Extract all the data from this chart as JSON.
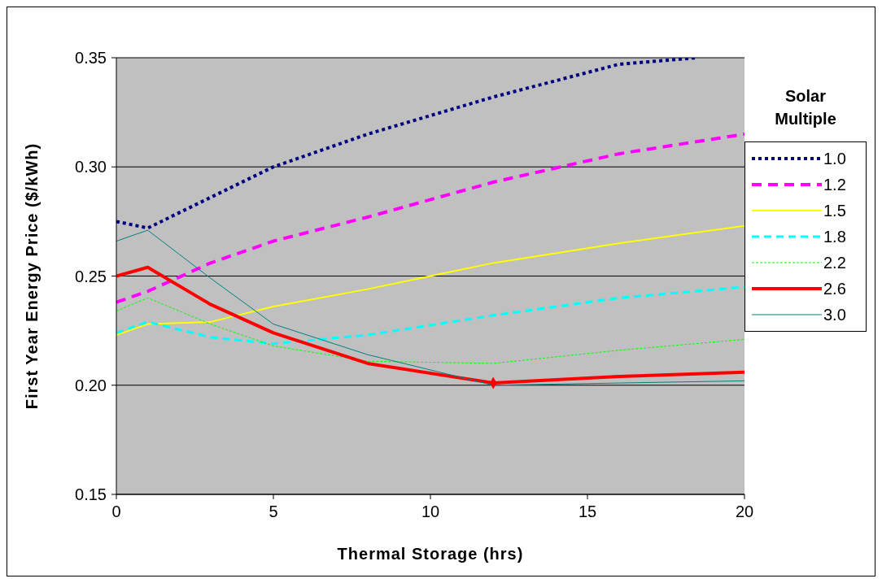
{
  "chart_data": {
    "type": "line",
    "xlabel": "Thermal Storage (hrs)",
    "ylabel": "First Year Energy Price ($/kWh)",
    "legend_title": "Solar Multiple",
    "x": [
      0,
      1,
      3,
      5,
      8,
      12,
      16,
      20
    ],
    "xlim": [
      0,
      20
    ],
    "xticks": [
      0,
      5,
      10,
      15,
      20
    ],
    "ylim": [
      0.15,
      0.35
    ],
    "yticks": [
      0.15,
      {
        "value": 0.2,
        "label": "0.20"
      },
      0.25,
      {
        "value": 0.3,
        "label": "0.30"
      },
      0.35
    ],
    "grid": "y",
    "legend": "right",
    "series": [
      {
        "name": "1.0",
        "color": "#000080",
        "line_style": "dotted",
        "x": [
          0,
          1,
          3,
          5,
          8,
          12,
          16,
          18.5
        ],
        "values": [
          0.275,
          0.272,
          0.286,
          0.3,
          0.315,
          0.332,
          0.347,
          0.35
        ]
      },
      {
        "name": "1.2",
        "color": "#ff00ff",
        "line_style": "dashed",
        "values": [
          0.238,
          0.243,
          0.256,
          0.266,
          0.277,
          0.293,
          0.306,
          0.315
        ]
      },
      {
        "name": "1.5",
        "color": "#ffff00",
        "line_style": "solid",
        "values": [
          0.223,
          0.228,
          0.229,
          0.236,
          0.244,
          0.256,
          0.265,
          0.273
        ]
      },
      {
        "name": "1.8",
        "color": "#00ffff",
        "line_style": "dashed",
        "values": [
          0.224,
          0.229,
          0.222,
          0.219,
          0.223,
          0.232,
          0.24,
          0.245
        ]
      },
      {
        "name": "2.2",
        "color": "#00ff00",
        "line_style": "dashed",
        "values": [
          0.234,
          0.24,
          0.228,
          0.218,
          0.211,
          0.21,
          0.216,
          0.221
        ]
      },
      {
        "name": "2.6",
        "color": "#ff0000",
        "line_style": "solid",
        "values": [
          0.25,
          0.254,
          0.237,
          0.224,
          0.21,
          0.201,
          0.204,
          0.206
        ]
      },
      {
        "name": "3.0",
        "color": "#008080",
        "line_style": "solid",
        "values": [
          0.266,
          0.271,
          0.249,
          0.228,
          0.214,
          0.2,
          0.201,
          0.202
        ]
      },
      {
        "type": "scatter",
        "color": "#ff0000",
        "marker": "diamond",
        "x": [
          12
        ],
        "values": [
          0.201
        ]
      }
    ]
  }
}
